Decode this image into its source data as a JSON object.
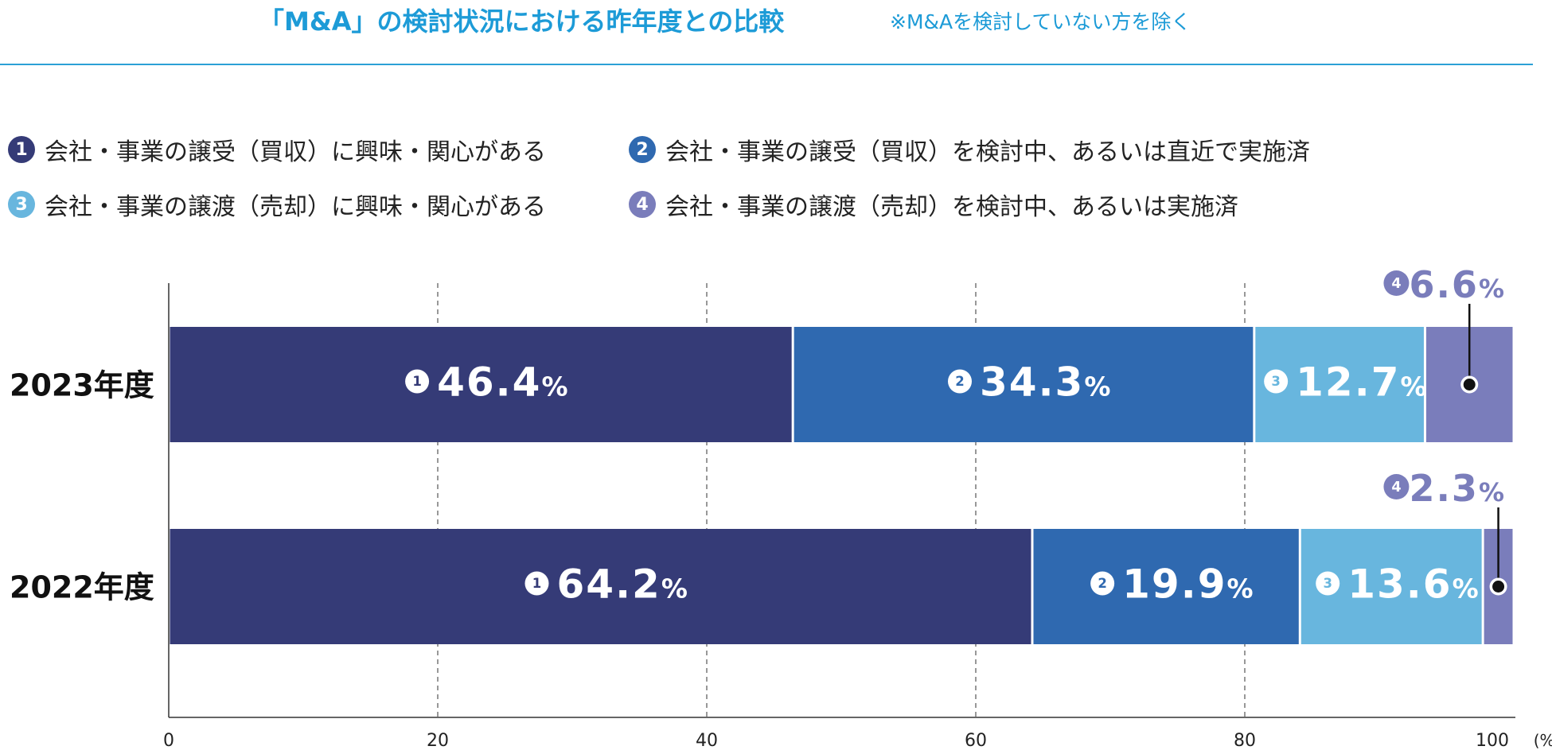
{
  "title": "「M&A」の検討状況における昨年度との比較",
  "note": "※M&Aを検討していない方を除く",
  "legend": [
    {
      "num": "1",
      "label": "会社・事業の譲受（買収）に興味・関心がある",
      "color": "#353b77"
    },
    {
      "num": "2",
      "label": "会社・事業の譲受（買収）を検討中、あるいは直近で実施済",
      "color": "#2f69b0"
    },
    {
      "num": "3",
      "label": "会社・事業の譲渡（売却）に興味・関心がある",
      "color": "#68b6de"
    },
    {
      "num": "4",
      "label": "会社・事業の譲渡（売却）を検討中、あるいは実施済",
      "color": "#7a7dbb"
    }
  ],
  "chart_data": {
    "type": "bar",
    "orientation": "horizontal",
    "stacked": true,
    "categories": [
      "2023年度",
      "2022年度"
    ],
    "series": [
      {
        "name": "1",
        "values": [
          46.4,
          64.2
        ],
        "color": "#353b77"
      },
      {
        "name": "2",
        "values": [
          34.3,
          19.9
        ],
        "color": "#2f69b0"
      },
      {
        "name": "3",
        "values": [
          12.7,
          13.6
        ],
        "color": "#68b6de"
      },
      {
        "name": "4",
        "values": [
          6.6,
          2.3
        ],
        "color": "#7a7dbb"
      }
    ],
    "value_labels": [
      [
        "46.4",
        "34.3",
        "12.7",
        "6.6"
      ],
      [
        "64.2",
        "19.9",
        "13.6",
        "2.3"
      ]
    ],
    "percent_sign": "%",
    "xlim": [
      0,
      100
    ],
    "xticks": [
      "0",
      "20",
      "40",
      "60",
      "80",
      "100"
    ],
    "xunit": "(%)",
    "grid": "dashed vertical"
  }
}
